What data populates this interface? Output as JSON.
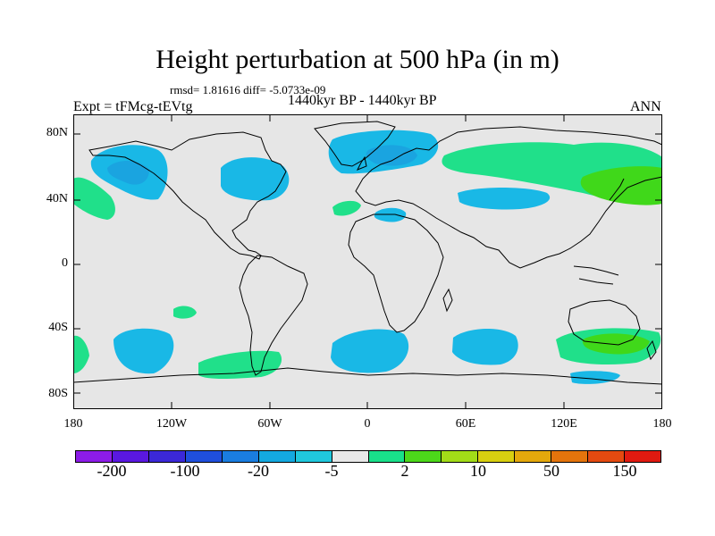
{
  "title": "Height perturbation at 500 hPa (in m)",
  "stats": "rmsd= 1.81616 diff= -5.0733e-09",
  "left_label": "Expt = tFMcg-tEVtg",
  "center_label": "1440kyr BP - 1440kyr BP",
  "right_label": "ANN",
  "lat_labels": [
    "80N",
    "40N",
    "0",
    "40S",
    "80S"
  ],
  "lon_labels": [
    "180",
    "120W",
    "60W",
    "0",
    "60E",
    "120E",
    "180"
  ],
  "colorbar": {
    "colors": [
      "#8c1ce8",
      "#5a18e0",
      "#3b28d8",
      "#1f4fdc",
      "#1a7de0",
      "#14a9e0",
      "#20c8dd",
      "#e8e8e8",
      "#19e08a",
      "#4cd81a",
      "#a2dc18",
      "#d8cf10",
      "#e4a80c",
      "#e4740c",
      "#e44a10",
      "#e01a10"
    ],
    "labels": [
      "-200",
      "-100",
      "-20",
      "-5",
      "2",
      "10",
      "50",
      "150"
    ]
  },
  "map": {
    "background_color": "#e6e6e6",
    "negative_color": "#19b8e6",
    "negative_strong_color": "#1aa4e0",
    "positive_color": "#20e08a",
    "positive_strong_color": "#40d81a"
  }
}
